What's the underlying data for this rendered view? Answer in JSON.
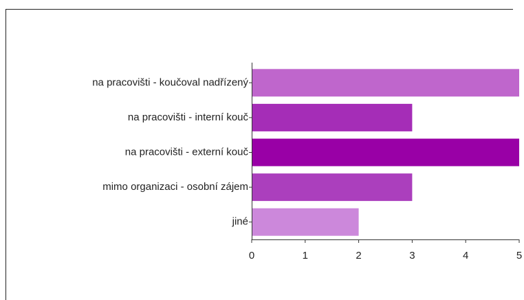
{
  "chart_data": {
    "type": "bar",
    "orientation": "horizontal",
    "categories": [
      "na pracovišti - koučoval nadřízený",
      "na pracovišti - interní kouč",
      "na pracovišti - externí kouč",
      "mimo organizaci - osobní zájem",
      "jiné"
    ],
    "values": [
      5,
      3,
      5,
      3,
      2
    ],
    "colors": [
      "#bf66cc",
      "#a52db7",
      "#9900a6",
      "#ab3fbd",
      "#cc88db"
    ],
    "xlim": [
      0,
      5
    ],
    "xticks": [
      0,
      1,
      2,
      3,
      4,
      5
    ],
    "grid": false
  }
}
